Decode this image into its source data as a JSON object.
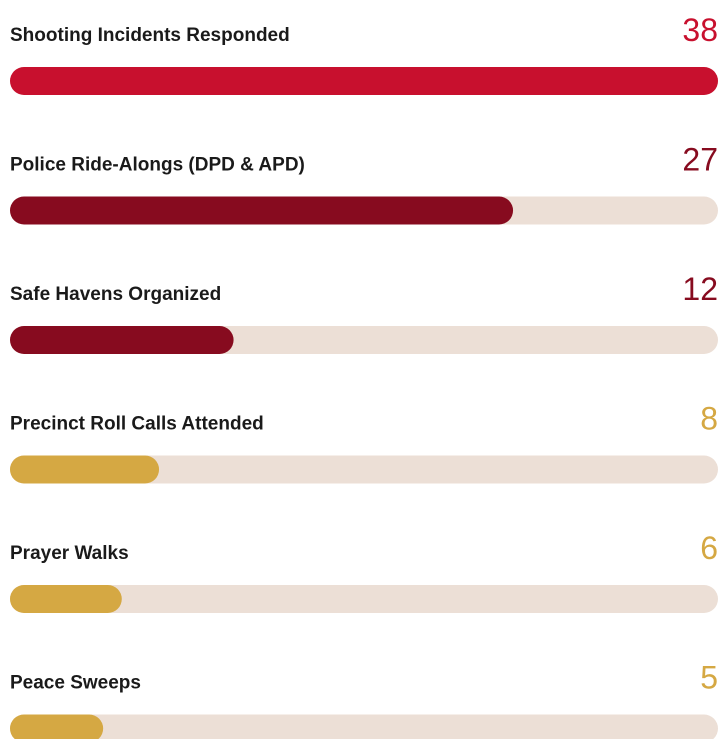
{
  "chart_data": {
    "type": "bar",
    "orientation": "horizontal",
    "categories": [
      "Shooting Incidents Responded",
      "Police Ride-Alongs (DPD & APD)",
      "Safe Havens Organized",
      "Precinct Roll Calls Attended",
      "Prayer Walks",
      "Peace Sweeps"
    ],
    "values": [
      38,
      27,
      12,
      8,
      6,
      5
    ],
    "colors": [
      "#c8102e",
      "#870b1f",
      "#870b1f",
      "#d5a843",
      "#d5a843",
      "#d5a843"
    ],
    "track_color": "#ecdfd6"
  }
}
